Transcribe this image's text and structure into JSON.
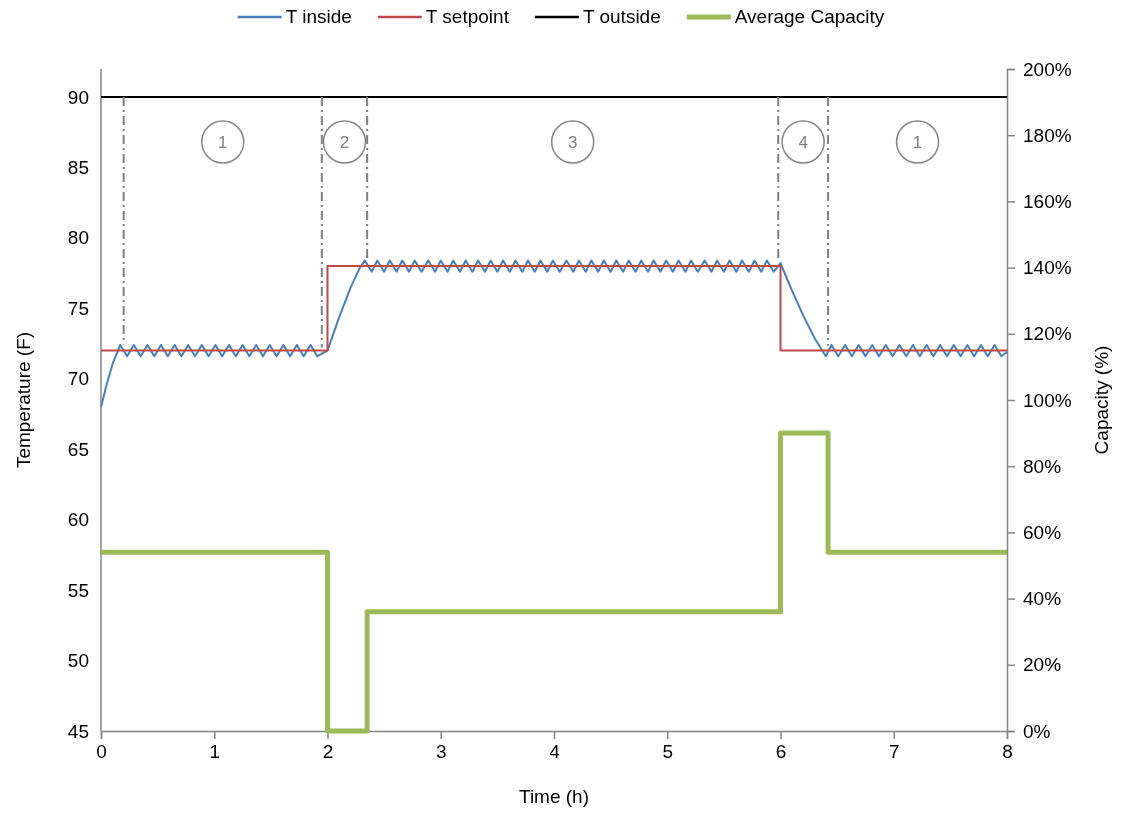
{
  "chart_data": {
    "type": "line",
    "xlabel": "Time (h)",
    "ylabel": "Temperature (F)",
    "y2label": "Capacity (%)",
    "xlim": [
      0,
      8
    ],
    "xticks": [
      0,
      1,
      2,
      3,
      4,
      5,
      6,
      7,
      8
    ],
    "ylim": [
      45,
      90
    ],
    "yticks": [
      45,
      50,
      55,
      60,
      65,
      70,
      75,
      80,
      85,
      90
    ],
    "y2lim": [
      0,
      200
    ],
    "y2ticks": [
      {
        "value": 0,
        "label": "0%"
      },
      {
        "value": 20,
        "label": "20%"
      },
      {
        "value": 40,
        "label": "40%"
      },
      {
        "value": 60,
        "label": "60%"
      },
      {
        "value": 80,
        "label": "80%"
      },
      {
        "value": 100,
        "label": "100%"
      },
      {
        "value": 120,
        "label": "120%"
      },
      {
        "value": 140,
        "label": "140%"
      },
      {
        "value": 160,
        "label": "160%"
      },
      {
        "value": 180,
        "label": "180%"
      },
      {
        "value": 200,
        "label": "200%"
      }
    ],
    "grid": false,
    "legend": "top",
    "marker": "none",
    "series": [
      {
        "name": "T inside",
        "color": "#4a7ebb",
        "x": [
          0,
          0.05,
          0.1,
          0.17,
          0.23,
          0.29,
          0.35,
          0.41,
          0.47,
          0.53,
          0.59,
          0.65,
          0.71,
          0.77,
          0.83,
          0.89,
          0.95,
          1.01,
          1.07,
          1.13,
          1.19,
          1.25,
          1.31,
          1.37,
          1.43,
          1.49,
          1.55,
          1.61,
          1.67,
          1.73,
          1.79,
          1.85,
          1.91,
          2.0,
          2.1,
          2.2,
          2.28,
          2.33,
          2.39,
          2.44,
          2.5,
          2.55,
          2.61,
          2.66,
          2.72,
          2.77,
          2.83,
          2.89,
          2.95,
          3.0,
          3.06,
          3.11,
          3.17,
          3.22,
          3.28,
          3.33,
          3.39,
          3.44,
          3.5,
          3.55,
          3.61,
          3.66,
          3.72,
          3.77,
          3.83,
          3.88,
          3.94,
          3.99,
          4.05,
          4.11,
          4.17,
          4.22,
          4.28,
          4.33,
          4.39,
          4.44,
          4.5,
          4.55,
          4.61,
          4.66,
          4.72,
          4.77,
          4.83,
          4.88,
          4.94,
          4.99,
          5.05,
          5.1,
          5.16,
          5.21,
          5.27,
          5.33,
          5.39,
          5.44,
          5.5,
          5.55,
          5.61,
          5.66,
          5.72,
          5.77,
          5.83,
          5.88,
          5.94,
          6.0,
          6.1,
          6.2,
          6.3,
          6.4,
          6.45,
          6.51,
          6.57,
          6.63,
          6.69,
          6.75,
          6.81,
          6.87,
          6.93,
          6.99,
          7.05,
          7.11,
          7.17,
          7.23,
          7.29,
          7.35,
          7.41,
          7.47,
          7.53,
          7.59,
          7.65,
          7.71,
          7.77,
          7.83,
          7.89,
          7.95,
          8.0
        ],
        "values": [
          68,
          69.6,
          71,
          72.4,
          71.6,
          72.4,
          71.6,
          72.4,
          71.6,
          72.4,
          71.6,
          72.4,
          71.6,
          72.4,
          71.6,
          72.4,
          71.6,
          72.4,
          71.6,
          72.4,
          71.6,
          72.4,
          71.6,
          72.4,
          71.6,
          72.4,
          71.6,
          72.4,
          71.6,
          72.4,
          71.6,
          72.4,
          71.6,
          72,
          74.3,
          76.4,
          77.8,
          78.4,
          77.6,
          78.4,
          77.6,
          78.4,
          77.6,
          78.4,
          77.6,
          78.4,
          77.6,
          78.4,
          77.6,
          78.4,
          77.6,
          78.4,
          77.6,
          78.4,
          77.6,
          78.4,
          77.6,
          78.4,
          77.6,
          78.4,
          77.6,
          78.4,
          77.6,
          78.4,
          77.6,
          78.4,
          77.6,
          78.4,
          77.6,
          78.4,
          77.6,
          78.4,
          77.6,
          78.4,
          77.6,
          78.4,
          77.6,
          78.4,
          77.6,
          78.4,
          77.6,
          78.4,
          77.6,
          78.4,
          77.6,
          78.4,
          77.6,
          78.4,
          77.6,
          78.4,
          77.6,
          78.4,
          77.6,
          78.4,
          77.6,
          78.4,
          77.6,
          78.4,
          77.6,
          78.4,
          77.6,
          78.4,
          77.6,
          78.2,
          76.3,
          74.5,
          72.9,
          71.6,
          72.4,
          71.6,
          72.4,
          71.6,
          72.4,
          71.6,
          72.4,
          71.6,
          72.4,
          71.6,
          72.4,
          71.6,
          72.4,
          71.6,
          72.4,
          71.6,
          72.4,
          71.6,
          72.4,
          71.6,
          72.4,
          71.6,
          72.4,
          71.6,
          72.4,
          71.6,
          71.9
        ]
      },
      {
        "name": "T setpoint",
        "type": "step",
        "color": "#be4b48",
        "x": [
          0,
          2,
          6,
          8
        ],
        "values": [
          72,
          78,
          72,
          72
        ]
      },
      {
        "name": "T outside",
        "color": "#000000",
        "x": [
          0,
          8
        ],
        "values": [
          90,
          90
        ]
      },
      {
        "name": "Average Capacity",
        "type": "step",
        "color": "#9bbb59",
        "axis": "y2",
        "x": [
          0,
          2,
          2.35,
          6,
          6.42,
          8
        ],
        "values": [
          54,
          0,
          36,
          90,
          54,
          54
        ]
      }
    ],
    "ref_lines": [
      {
        "axis": "x",
        "value": 0.2,
        "color": "#7f7f7f",
        "line_style": "dashed"
      },
      {
        "axis": "x",
        "value": 1.95,
        "color": "#7f7f7f",
        "line_style": "dashed"
      },
      {
        "axis": "x",
        "value": 2.35,
        "color": "#7f7f7f",
        "line_style": "dashed"
      },
      {
        "axis": "x",
        "value": 5.98,
        "color": "#7f7f7f",
        "line_style": "dashed"
      },
      {
        "axis": "x",
        "value": 6.42,
        "color": "#7f7f7f",
        "line_style": "dashed"
      }
    ],
    "annotations": [
      "1",
      "2",
      "3",
      "4",
      "1"
    ]
  }
}
